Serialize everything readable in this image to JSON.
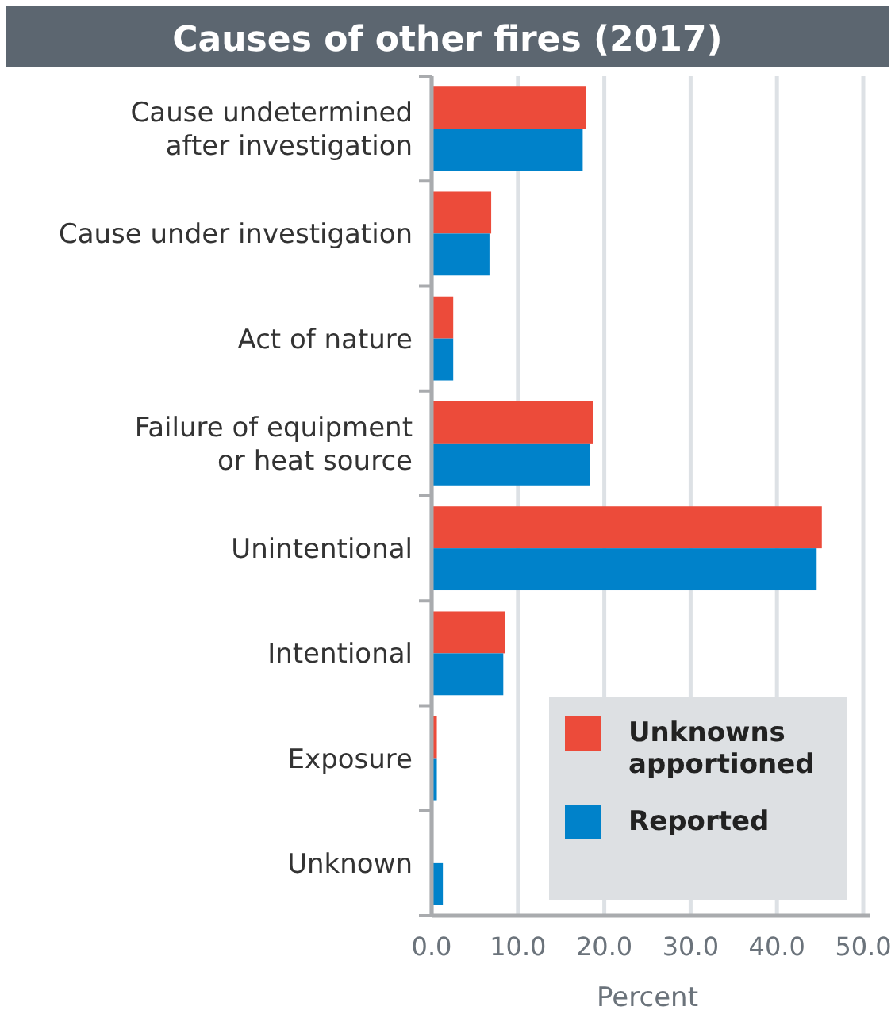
{
  "chart_data": {
    "type": "bar",
    "orientation": "horizontal",
    "title": "Causes of other fires (2017)",
    "xlabel": "Percent",
    "categories": [
      "Cause undetermined\nafter investigation",
      "Cause under investigation",
      "Act of nature",
      "Failure of equipment\nor heat source",
      "Unintentional",
      "Intentional",
      "Exposure",
      "Unknown"
    ],
    "series": [
      {
        "name": "Unknowns apportioned",
        "color": "#ec4b3a",
        "values": [
          17.9,
          6.9,
          2.5,
          18.7,
          45.2,
          8.5,
          0.6,
          0
        ]
      },
      {
        "name": "Reported",
        "color": "#0082ca",
        "values": [
          17.5,
          6.7,
          2.5,
          18.3,
          44.6,
          8.3,
          0.6,
          1.3
        ]
      }
    ],
    "xlim": [
      0,
      50
    ],
    "xticks": [
      {
        "value": 0,
        "label": "0.0"
      },
      {
        "value": 10,
        "label": "10.0"
      },
      {
        "value": 20,
        "label": "20.0"
      },
      {
        "value": 30,
        "label": "30.0"
      },
      {
        "value": 40,
        "label": "40.0"
      },
      {
        "value": 50,
        "label": "50.0"
      }
    ],
    "grid": "x",
    "legend": "bottom right"
  }
}
